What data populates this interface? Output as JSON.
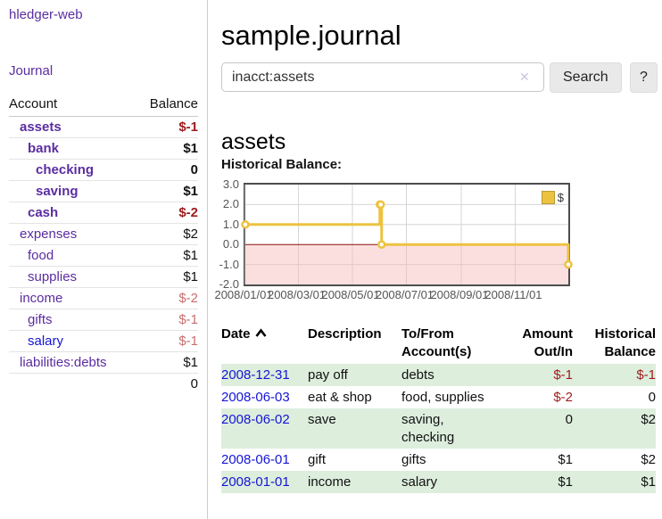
{
  "app": {
    "title": "hledger-web",
    "nav_journal": "Journal"
  },
  "sidebar": {
    "col_account": "Account",
    "col_balance": "Balance",
    "accounts": [
      {
        "name": "assets",
        "balance": "$-1"
      },
      {
        "name": "bank",
        "balance": "$1"
      },
      {
        "name": "checking",
        "balance": "0"
      },
      {
        "name": "saving",
        "balance": "$1"
      },
      {
        "name": "cash",
        "balance": "$-2"
      },
      {
        "name": "expenses",
        "balance": "$2"
      },
      {
        "name": "food",
        "balance": "$1"
      },
      {
        "name": "supplies",
        "balance": "$1"
      },
      {
        "name": "income",
        "balance": "$-2"
      },
      {
        "name": "gifts",
        "balance": "$-1"
      },
      {
        "name": "salary",
        "balance": "$-1"
      },
      {
        "name": "liabilities:debts",
        "balance": "$1"
      }
    ],
    "total": "0"
  },
  "main": {
    "title": "sample.journal",
    "search": {
      "value": "inacct:assets",
      "clear_icon": "✕",
      "button_label": "Search",
      "help_label": "?"
    },
    "account_heading": "assets",
    "chart_label": "Historical Balance:"
  },
  "chart_data": {
    "type": "line",
    "title": "Historical Balance:",
    "legend": "$",
    "legend_position": "top-right",
    "step": true,
    "grid": true,
    "series_color": "#edc240",
    "negative_region_color": "#f7b8b8",
    "zero_line_color": "#871111",
    "x": [
      "2008-01-01",
      "2008-06-01",
      "2008-06-02",
      "2008-06-03",
      "2008-12-31"
    ],
    "values": [
      1,
      2,
      2,
      0,
      -1
    ],
    "xlim": [
      "2008-01-01",
      "2008-12-31"
    ],
    "ylim": [
      -2.0,
      3.0
    ],
    "yticks": [
      3.0,
      2.0,
      1.0,
      0.0,
      -1.0,
      -2.0
    ],
    "ytick_labels": [
      "3.0",
      "2.0",
      "1.0",
      "0.0",
      "-1.0",
      "-2.0"
    ],
    "xticks": [
      "2008-01-01",
      "2008-03-01",
      "2008-05-01",
      "2008-07-01",
      "2008-09-01",
      "2008-11-01"
    ],
    "xtick_labels": [
      "2008/01/01",
      "2008/03/01",
      "2008/05/01",
      "2008/07/01",
      "2008/09/01",
      "2008/11/01"
    ]
  },
  "register": {
    "headers": {
      "date": "Date",
      "description": "Description",
      "accounts": "To/From Account(s)",
      "amount": "Amount Out/In",
      "balance": "Historical Balance"
    },
    "rows": [
      {
        "date": "2008-12-31",
        "description": "pay off",
        "accounts": "debts",
        "amount": "$-1",
        "balance": "$-1"
      },
      {
        "date": "2008-06-03",
        "description": "eat & shop",
        "accounts": "food, supplies",
        "amount": "$-2",
        "balance": "0"
      },
      {
        "date": "2008-06-02",
        "description": "save",
        "accounts": "saving, checking",
        "amount": "0",
        "balance": "$2"
      },
      {
        "date": "2008-06-01",
        "description": "gift",
        "accounts": "gifts",
        "amount": "$1",
        "balance": "$2"
      },
      {
        "date": "2008-01-01",
        "description": "income",
        "accounts": "salary",
        "amount": "$1",
        "balance": "$1"
      }
    ]
  }
}
